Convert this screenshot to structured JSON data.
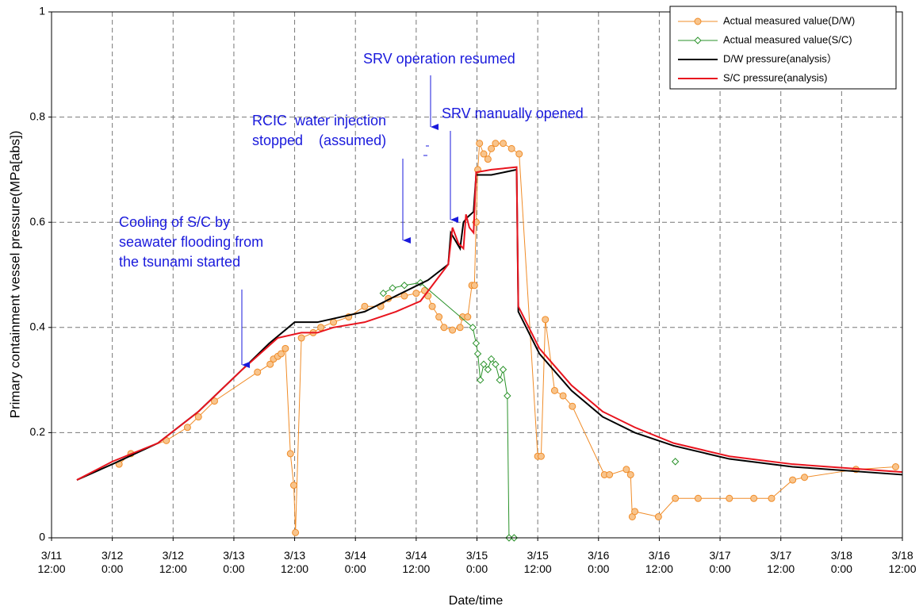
{
  "chart_data": {
    "type": "line",
    "y_label": "Primary containment vessel pressure(MPa[abs])",
    "x_label": "Date/time",
    "ylim": [
      0,
      1
    ],
    "yticks": [
      0,
      0.2,
      0.4,
      0.6,
      0.8,
      1
    ],
    "xlim": [
      "3/11 12:00",
      "3/18 12:00"
    ],
    "xticks": [
      {
        "value": "3/11 12:00",
        "label": "3/11\n12:00"
      },
      {
        "value": "3/12 0:00",
        "label": "3/12\n0:00"
      },
      {
        "value": "3/12 12:00",
        "label": "3/12\n12:00"
      },
      {
        "value": "3/13 0:00",
        "label": "3/13\n0:00"
      },
      {
        "value": "3/13 12:00",
        "label": "3/13\n12:00"
      },
      {
        "value": "3/14 0:00",
        "label": "3/14\n0:00"
      },
      {
        "value": "3/14 12:00",
        "label": "3/14\n12:00"
      },
      {
        "value": "3/15 0:00",
        "label": "3/15\n0:00"
      },
      {
        "value": "3/15 12:00",
        "label": "3/15\n12:00"
      },
      {
        "value": "3/16 0:00",
        "label": "3/16\n0:00"
      },
      {
        "value": "3/16 12:00",
        "label": "3/16\n12:00"
      },
      {
        "value": "3/17 0:00",
        "label": "3/17\n0:00"
      },
      {
        "value": "3/17 12:00",
        "label": "3/17\n12:00"
      },
      {
        "value": "3/18 0:00",
        "label": "3/18\n0:00"
      },
      {
        "value": "3/18 12:00",
        "label": "3/18\n12:00"
      }
    ],
    "grid": true,
    "legend": "upper right",
    "series": [
      {
        "name": "Actual measured value(D/W)",
        "color": "#f08c28",
        "marker": "circle",
        "x": [
          "3/12 1:20",
          "3/12 3:40",
          "3/12 10:40",
          "3/12 14:50",
          "3/12 17:00",
          "3/12 20:10",
          "3/13 4:40",
          "3/13 7:10",
          "3/13 7:50",
          "3/13 8:40",
          "3/13 9:20",
          "3/13 10:10",
          "3/13 11:10",
          "3/13 11:50",
          "3/13 12:10",
          "3/13 13:20",
          "3/13 15:40",
          "3/13 17:10",
          "3/13 19:40",
          "3/13 22:40",
          "3/14 1:50",
          "3/14 5:00",
          "3/14 6:30",
          "3/14 9:40",
          "3/14 12:00",
          "3/14 13:40",
          "3/14 14:20",
          "3/14 15:10",
          "3/14 16:30",
          "3/14 17:30",
          "3/14 19:10",
          "3/14 20:40",
          "3/14 21:10",
          "3/14 22:10",
          "3/14 23:00",
          "3/14 23:30",
          "3/14 23:50",
          "3/15 0:10",
          "3/15 0:30",
          "3/15 1:20",
          "3/15 2:10",
          "3/15 2:50",
          "3/15 3:40",
          "3/15 5:10",
          "3/15 6:50",
          "3/15 8:20",
          "3/15 12:00",
          "3/15 12:40",
          "3/15 13:30",
          "3/15 15:20",
          "3/15 17:00",
          "3/15 18:50",
          "3/16 1:10",
          "3/16 2:10",
          "3/16 5:30",
          "3/16 6:20",
          "3/16 6:40",
          "3/16 7:10",
          "3/16 11:50",
          "3/16 15:10",
          "3/16 19:40",
          "3/17 1:50",
          "3/17 6:40",
          "3/17 10:10",
          "3/17 14:20",
          "3/17 16:40",
          "3/18 2:50",
          "3/18 10:40"
        ],
        "values": [
          0.14,
          0.16,
          0.185,
          0.21,
          0.23,
          0.26,
          0.315,
          0.33,
          0.34,
          0.345,
          0.35,
          0.36,
          0.16,
          0.1,
          0.01,
          0.38,
          0.39,
          0.4,
          0.41,
          0.42,
          0.44,
          0.44,
          0.455,
          0.46,
          0.465,
          0.47,
          0.46,
          0.44,
          0.42,
          0.4,
          0.395,
          0.4,
          0.42,
          0.42,
          0.48,
          0.48,
          0.6,
          0.7,
          0.75,
          0.73,
          0.72,
          0.74,
          0.75,
          0.75,
          0.74,
          0.73,
          0.155,
          0.155,
          0.415,
          0.28,
          0.27,
          0.25,
          0.12,
          0.12,
          0.13,
          0.12,
          0.04,
          0.05,
          0.04,
          0.075,
          0.075,
          0.075,
          0.075,
          0.075,
          0.11,
          0.115,
          0.13,
          0.135
        ]
      },
      {
        "name": "Actual measured value(S/C)",
        "color": "#2a922a",
        "marker": "diamond",
        "x": [
          "3/14 5:30",
          "3/14 7:20",
          "3/14 9:40",
          "3/14 12:50",
          "3/14 23:10",
          "3/14 23:50",
          "3/15 0:10",
          "3/15 0:40",
          "3/15 1:20",
          "3/15 2:10",
          "3/15 2:50",
          "3/15 3:40",
          "3/15 4:30",
          "3/15 5:10",
          "3/15 6:00",
          "3/15 6:20",
          "3/15 7:20",
          "3/16 0:00",
          "3/16 15:10"
        ],
        "values": [
          0.465,
          0.475,
          0.48,
          0.485,
          0.4,
          0.37,
          0.35,
          0.3,
          0.33,
          0.32,
          0.34,
          0.33,
          0.3,
          0.32,
          0.27,
          0,
          0,
          null,
          0.145
        ]
      },
      {
        "name": "D/W pressure(analysis）",
        "color": "#000000",
        "marker": null,
        "x": [
          "3/11 17:00",
          "3/12 0:00",
          "3/12 9:00",
          "3/12 17:00",
          "3/13 1:40",
          "3/13 7:00",
          "3/13 12:00",
          "3/13 16:30",
          "3/14 1:50",
          "3/14 8:00",
          "3/14 14:20",
          "3/14 18:20",
          "3/14 18:50",
          "3/14 20:40",
          "3/14 21:20",
          "3/14 22:10",
          "3/14 23:20",
          "3/14 23:50",
          "3/15 2:50",
          "3/15 7:50",
          "3/15 8:10",
          "3/15 12:20",
          "3/15 18:40",
          "3/16 0:50",
          "3/16 7:10",
          "3/16 14:50",
          "3/17 1:50",
          "3/17 14:20",
          "3/18 12:00"
        ],
        "values": [
          0.11,
          0.14,
          0.18,
          0.24,
          0.32,
          0.37,
          0.41,
          0.41,
          0.43,
          0.46,
          0.49,
          0.52,
          0.58,
          0.55,
          0.6,
          0.61,
          0.62,
          0.69,
          0.69,
          0.7,
          0.43,
          0.35,
          0.28,
          0.23,
          0.2,
          0.175,
          0.15,
          0.135,
          0.12
        ]
      },
      {
        "name": "S/C pressure(analysis)",
        "color": "#e8141e",
        "marker": null,
        "x": [
          "3/11 17:00",
          "3/12 0:00",
          "3/12 9:00",
          "3/12 17:00",
          "3/13 1:40",
          "3/13 8:40",
          "3/13 13:20",
          "3/13 16:30",
          "3/13 19:40",
          "3/14 1:50",
          "3/14 8:00",
          "3/14 12:50",
          "3/14 18:20",
          "3/14 19:10",
          "3/14 20:20",
          "3/14 21:20",
          "3/14 21:50",
          "3/14 22:30",
          "3/14 23:20",
          "3/14 23:50",
          "3/15 2:50",
          "3/15 7:50",
          "3/15 8:10",
          "3/15 12:20",
          "3/15 18:40",
          "3/16 0:50",
          "3/16 7:10",
          "3/16 14:50",
          "3/17 1:50",
          "3/17 14:20",
          "3/18 12:00"
        ],
        "values": [
          0.11,
          0.145,
          0.18,
          0.24,
          0.32,
          0.38,
          0.39,
          0.39,
          0.4,
          0.41,
          0.43,
          0.45,
          0.52,
          0.59,
          0.56,
          0.55,
          0.615,
          0.59,
          0.58,
          0.695,
          0.7,
          0.705,
          0.44,
          0.36,
          0.29,
          0.24,
          0.21,
          0.18,
          0.155,
          0.14,
          0.125
        ]
      }
    ],
    "annotations": [
      {
        "lines": [
          "SRV operation resumed"
        ]
      },
      {
        "lines": [
          "RCIC  water injection",
          "stopped    (assumed)"
        ]
      },
      {
        "lines": [
          "SRV manually opened"
        ]
      },
      {
        "lines": [
          "Cooling of S/C by",
          "seawater flooding from",
          "the tsunami started"
        ]
      }
    ]
  }
}
